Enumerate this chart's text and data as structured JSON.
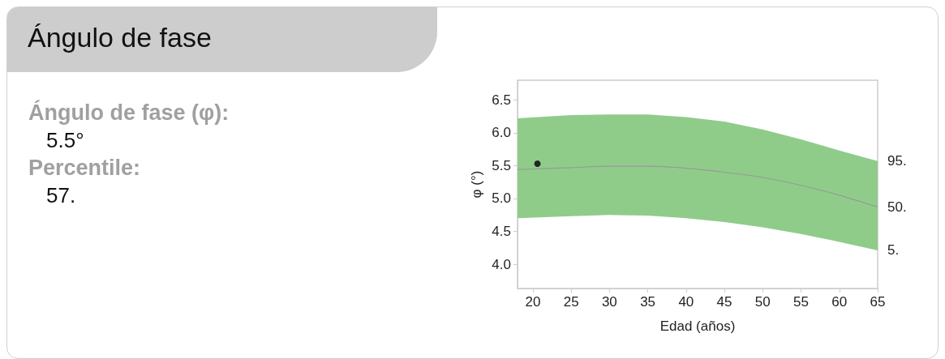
{
  "chart_data": {
    "type": "line",
    "title": "Ángulo de fase",
    "xlabel": "Edad (años)",
    "ylabel": "φ (°)",
    "x": [
      18,
      25,
      30,
      35,
      40,
      45,
      50,
      55,
      60,
      65
    ],
    "series": [
      {
        "color": "#999999",
        "values": [
          5.44,
          5.47,
          5.49,
          5.49,
          5.46,
          5.4,
          5.32,
          5.2,
          5.05,
          4.87
        ],
        "lower": [
          4.7,
          4.73,
          4.75,
          4.74,
          4.7,
          4.64,
          4.56,
          4.46,
          4.34,
          4.21
        ],
        "upper": [
          6.22,
          6.27,
          6.28,
          6.28,
          6.24,
          6.17,
          6.05,
          5.9,
          5.73,
          5.57
        ]
      },
      {
        "type": "scatter",
        "color": "#000000",
        "x": [
          20.6
        ],
        "values": [
          5.53
        ]
      }
    ],
    "xlim": [
      18,
      65
    ],
    "xticks": [
      20,
      25,
      30,
      35,
      40,
      45,
      50,
      55,
      60,
      65
    ],
    "ylim": [
      3.63,
      6.8
    ],
    "yticks": [
      {
        "value": 4,
        "label": "4.0"
      },
      4.5,
      {
        "value": 5,
        "label": "5.0"
      },
      5.5,
      {
        "value": 6,
        "label": "6.0"
      },
      6.5
    ],
    "grid": false,
    "annotations": [
      "Ángulo de fase (φ):",
      "5.5°",
      "Percentile:",
      "57.",
      "95.",
      "50.",
      "5."
    ]
  }
}
